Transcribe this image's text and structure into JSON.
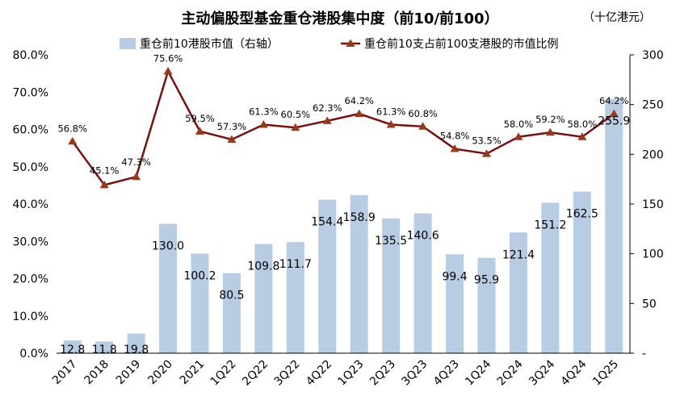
{
  "chart_data": {
    "type": "bar",
    "title": "主动偏股型基金重仓港股集中度（前10/前100）",
    "unit": "（十亿港元）",
    "categories": [
      "2017",
      "2018",
      "2019",
      "2020",
      "2021",
      "1Q22",
      "2Q22",
      "3Q22",
      "4Q22",
      "1Q23",
      "2Q23",
      "3Q23",
      "4Q23",
      "1Q24",
      "2Q24",
      "3Q24",
      "4Q24",
      "1Q25"
    ],
    "series": [
      {
        "name": "重仓前10港股市值（右轴）",
        "type": "bar",
        "axis": "right",
        "values": [
          12.8,
          11.8,
          19.8,
          130.0,
          100.2,
          80.5,
          109.8,
          111.7,
          154.4,
          158.9,
          135.5,
          140.6,
          99.4,
          95.9,
          121.4,
          151.2,
          162.5,
          255.9
        ],
        "labels": [
          "12.8",
          "11.8",
          "19.8",
          "130.0",
          "100.2",
          "80.5",
          "109.8",
          "111.7",
          "154.4",
          "158.9",
          "135.5",
          "140.6",
          "99.4",
          "95.9",
          "121.4",
          "151.2",
          "162.5",
          "255.9"
        ]
      },
      {
        "name": "重仓前10支占前100支港股的市值比例",
        "type": "line",
        "axis": "left",
        "values": [
          56.8,
          45.1,
          47.3,
          75.6,
          59.5,
          57.3,
          61.3,
          60.5,
          62.3,
          64.2,
          61.3,
          60.8,
          54.8,
          53.5,
          58.0,
          59.2,
          58.0,
          64.2
        ],
        "labels": [
          "56.8%",
          "45.1%",
          "47.3%",
          "75.6%",
          "59.5%",
          "57.3%",
          "61.3%",
          "60.5%",
          "62.3%",
          "64.2%",
          "61.3%",
          "60.8%",
          "54.8%",
          "53.5%",
          "58.0%",
          "59.2%",
          "58.0%",
          "64.2%"
        ]
      }
    ],
    "y_left": {
      "range": [
        0,
        80
      ],
      "ticks": [
        0,
        10,
        20,
        30,
        40,
        50,
        60,
        70,
        80
      ],
      "tick_labels": [
        "0.0%",
        "10.0%",
        "20.0%",
        "30.0%",
        "40.0%",
        "50.0%",
        "60.0%",
        "70.0%",
        "80.0%"
      ]
    },
    "y_right": {
      "range": [
        0,
        300
      ],
      "ticks": [
        0,
        50,
        100,
        150,
        200,
        250,
        300
      ],
      "tick_labels": [
        "-",
        "50",
        "100",
        "150",
        "200",
        "250",
        "300"
      ]
    },
    "grid": false,
    "legend": "top",
    "colors": {
      "bar": "#b8cce4",
      "line": "#7b0f0f",
      "marker": "#963a1a"
    }
  }
}
